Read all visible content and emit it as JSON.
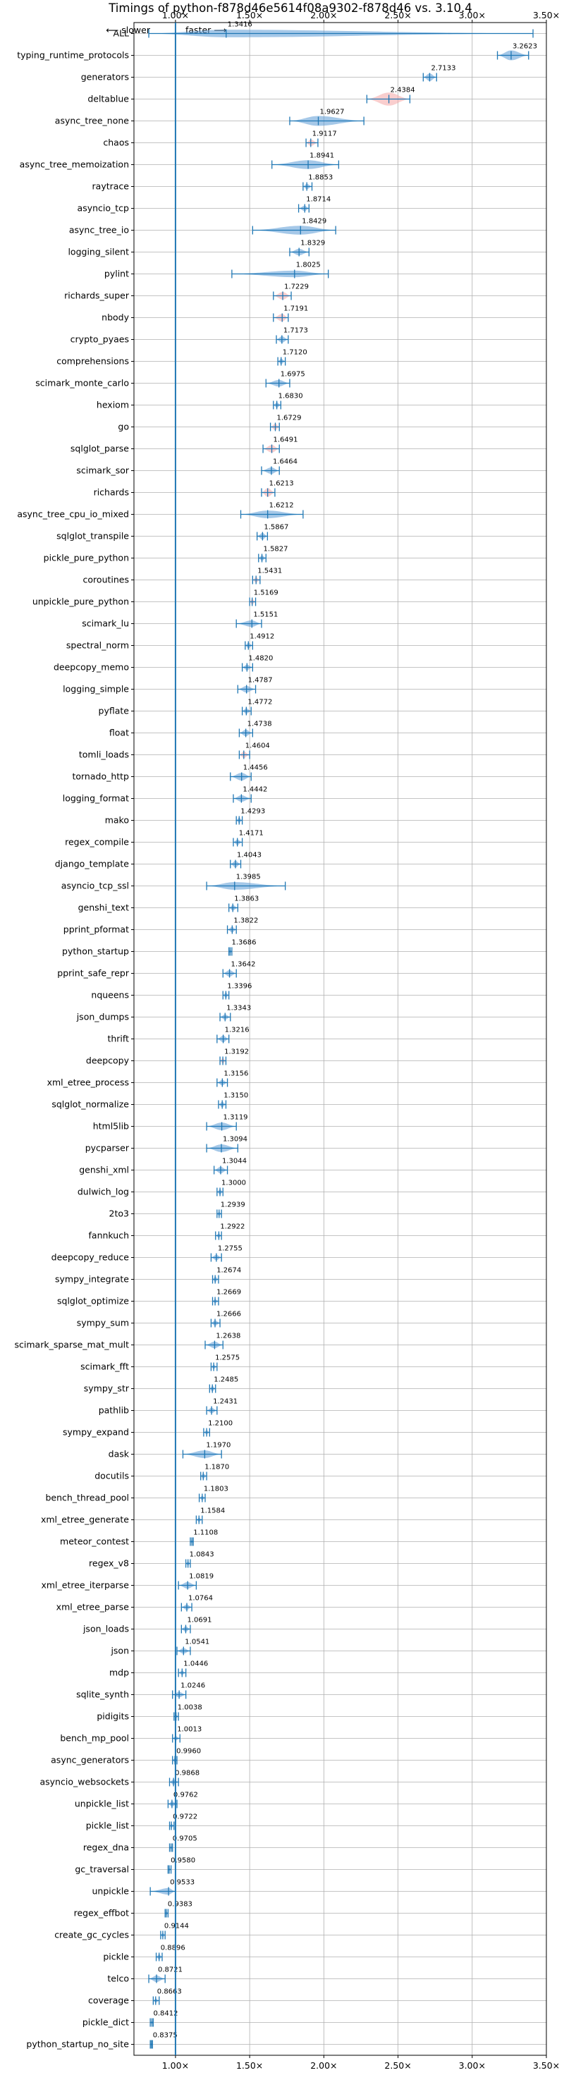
{
  "chart_data": {
    "type": "violin",
    "title": "Timings of python-f878d46e5614f08a9302-f878d46 vs. 3.10.4",
    "direction_left": "⟵ slower",
    "direction_right": "faster ⟶",
    "xlim": [
      0.72,
      3.5
    ],
    "x_ticks": [
      1.0,
      1.5,
      2.0,
      2.5,
      3.0,
      3.5
    ],
    "x_tick_labels": [
      "1.00×",
      "1.50×",
      "2.00×",
      "2.50×",
      "3.00×",
      "3.50×"
    ],
    "reference_line": 1.0,
    "grid": true,
    "colors": {
      "normal": "#5b9bd5",
      "highlight": "#f4a6a6",
      "line": "#1f77b4"
    },
    "benchmarks": [
      {
        "name": "ALL",
        "value": 1.3416,
        "min": 0.82,
        "max": 3.41,
        "width": 0.35,
        "label": "1.3416",
        "highlight": false
      },
      {
        "name": "typing_runtime_protocols",
        "value": 3.2623,
        "min": 3.17,
        "max": 3.38,
        "width": 0.45,
        "label": "3.2623",
        "highlight": false
      },
      {
        "name": "generators",
        "value": 2.7133,
        "min": 2.67,
        "max": 2.76,
        "width": 0.35,
        "label": "2.7133",
        "highlight": false
      },
      {
        "name": "deltablue",
        "value": 2.4384,
        "min": 2.29,
        "max": 2.58,
        "width": 0.6,
        "label": "2.4384",
        "highlight": true
      },
      {
        "name": "async_tree_none",
        "value": 1.9627,
        "min": 1.77,
        "max": 2.27,
        "width": 0.45,
        "label": "1.9627",
        "highlight": false
      },
      {
        "name": "chaos",
        "value": 1.9117,
        "min": 1.88,
        "max": 1.96,
        "width": 0.3,
        "label": "1.9117",
        "highlight": true
      },
      {
        "name": "async_tree_memoization",
        "value": 1.8941,
        "min": 1.65,
        "max": 2.1,
        "width": 0.4,
        "label": "1.8941",
        "highlight": false
      },
      {
        "name": "raytrace",
        "value": 1.8853,
        "min": 1.86,
        "max": 1.92,
        "width": 0.25,
        "label": "1.8853",
        "highlight": false
      },
      {
        "name": "asyncio_tcp",
        "value": 1.8714,
        "min": 1.83,
        "max": 1.9,
        "width": 0.25,
        "label": "1.8714",
        "highlight": false
      },
      {
        "name": "async_tree_io",
        "value": 1.8429,
        "min": 1.52,
        "max": 2.08,
        "width": 0.4,
        "label": "1.8429",
        "highlight": false
      },
      {
        "name": "logging_silent",
        "value": 1.8329,
        "min": 1.77,
        "max": 1.9,
        "width": 0.3,
        "label": "1.8329",
        "highlight": false
      },
      {
        "name": "pylint",
        "value": 1.8025,
        "min": 1.38,
        "max": 2.03,
        "width": 0.3,
        "label": "1.8025",
        "highlight": false
      },
      {
        "name": "richards_super",
        "value": 1.7229,
        "min": 1.66,
        "max": 1.78,
        "width": 0.35,
        "label": "1.7229",
        "highlight": true
      },
      {
        "name": "nbody",
        "value": 1.7191,
        "min": 1.66,
        "max": 1.76,
        "width": 0.35,
        "label": "1.7191",
        "highlight": true
      },
      {
        "name": "crypto_pyaes",
        "value": 1.7173,
        "min": 1.68,
        "max": 1.76,
        "width": 0.3,
        "label": "1.7173",
        "highlight": false
      },
      {
        "name": "comprehensions",
        "value": 1.712,
        "min": 1.69,
        "max": 1.74,
        "width": 0.25,
        "label": "1.7120",
        "highlight": false
      },
      {
        "name": "scimark_monte_carlo",
        "value": 1.6975,
        "min": 1.61,
        "max": 1.77,
        "width": 0.3,
        "label": "1.6975",
        "highlight": false
      },
      {
        "name": "hexiom",
        "value": 1.683,
        "min": 1.66,
        "max": 1.71,
        "width": 0.25,
        "label": "1.6830",
        "highlight": false
      },
      {
        "name": "go",
        "value": 1.6729,
        "min": 1.64,
        "max": 1.7,
        "width": 0.3,
        "label": "1.6729",
        "highlight": true
      },
      {
        "name": "sqlglot_parse",
        "value": 1.6491,
        "min": 1.59,
        "max": 1.7,
        "width": 0.35,
        "label": "1.6491",
        "highlight": true
      },
      {
        "name": "scimark_sor",
        "value": 1.6464,
        "min": 1.58,
        "max": 1.7,
        "width": 0.3,
        "label": "1.6464",
        "highlight": false
      },
      {
        "name": "richards",
        "value": 1.6213,
        "min": 1.58,
        "max": 1.67,
        "width": 0.4,
        "label": "1.6213",
        "highlight": true
      },
      {
        "name": "async_tree_cpu_io_mixed",
        "value": 1.6212,
        "min": 1.44,
        "max": 1.86,
        "width": 0.35,
        "label": "1.6212",
        "highlight": false
      },
      {
        "name": "sqlglot_transpile",
        "value": 1.5867,
        "min": 1.55,
        "max": 1.62,
        "width": 0.3,
        "label": "1.5867",
        "highlight": false
      },
      {
        "name": "pickle_pure_python",
        "value": 1.5827,
        "min": 1.56,
        "max": 1.61,
        "width": 0.25,
        "label": "1.5827",
        "highlight": false
      },
      {
        "name": "coroutines",
        "value": 1.5431,
        "min": 1.52,
        "max": 1.57,
        "width": 0.25,
        "label": "1.5431",
        "highlight": true
      },
      {
        "name": "unpickle_pure_python",
        "value": 1.5169,
        "min": 1.5,
        "max": 1.54,
        "width": 0.25,
        "label": "1.5169",
        "highlight": true
      },
      {
        "name": "scimark_lu",
        "value": 1.5151,
        "min": 1.41,
        "max": 1.58,
        "width": 0.3,
        "label": "1.5151",
        "highlight": false
      },
      {
        "name": "spectral_norm",
        "value": 1.4912,
        "min": 1.47,
        "max": 1.52,
        "width": 0.25,
        "label": "1.4912",
        "highlight": false
      },
      {
        "name": "deepcopy_memo",
        "value": 1.482,
        "min": 1.45,
        "max": 1.52,
        "width": 0.25,
        "label": "1.4820",
        "highlight": false
      },
      {
        "name": "logging_simple",
        "value": 1.4787,
        "min": 1.42,
        "max": 1.54,
        "width": 0.3,
        "label": "1.4787",
        "highlight": false
      },
      {
        "name": "pyflate",
        "value": 1.4772,
        "min": 1.45,
        "max": 1.51,
        "width": 0.25,
        "label": "1.4772",
        "highlight": false
      },
      {
        "name": "float",
        "value": 1.4738,
        "min": 1.43,
        "max": 1.52,
        "width": 0.3,
        "label": "1.4738",
        "highlight": false
      },
      {
        "name": "tomli_loads",
        "value": 1.4604,
        "min": 1.43,
        "max": 1.5,
        "width": 0.3,
        "label": "1.4604",
        "highlight": true
      },
      {
        "name": "tornado_http",
        "value": 1.4456,
        "min": 1.37,
        "max": 1.51,
        "width": 0.35,
        "label": "1.4456",
        "highlight": false
      },
      {
        "name": "logging_format",
        "value": 1.4442,
        "min": 1.39,
        "max": 1.51,
        "width": 0.3,
        "label": "1.4442",
        "highlight": false
      },
      {
        "name": "mako",
        "value": 1.4293,
        "min": 1.41,
        "max": 1.45,
        "width": 0.25,
        "label": "1.4293",
        "highlight": false
      },
      {
        "name": "regex_compile",
        "value": 1.4171,
        "min": 1.39,
        "max": 1.45,
        "width": 0.25,
        "label": "1.4171",
        "highlight": false
      },
      {
        "name": "django_template",
        "value": 1.4043,
        "min": 1.37,
        "max": 1.44,
        "width": 0.3,
        "label": "1.4043",
        "highlight": false
      },
      {
        "name": "asyncio_tcp_ssl",
        "value": 1.3985,
        "min": 1.21,
        "max": 1.74,
        "width": 0.35,
        "label": "1.3985",
        "highlight": false
      },
      {
        "name": "genshi_text",
        "value": 1.3863,
        "min": 1.36,
        "max": 1.42,
        "width": 0.25,
        "label": "1.3863",
        "highlight": false
      },
      {
        "name": "pprint_pformat",
        "value": 1.3822,
        "min": 1.35,
        "max": 1.41,
        "width": 0.25,
        "label": "1.3822",
        "highlight": false
      },
      {
        "name": "python_startup",
        "value": 1.3686,
        "min": 1.36,
        "max": 1.38,
        "width": 0.2,
        "label": "1.3686",
        "highlight": false
      },
      {
        "name": "pprint_safe_repr",
        "value": 1.3642,
        "min": 1.32,
        "max": 1.41,
        "width": 0.3,
        "label": "1.3642",
        "highlight": false
      },
      {
        "name": "nqueens",
        "value": 1.3396,
        "min": 1.32,
        "max": 1.36,
        "width": 0.25,
        "label": "1.3396",
        "highlight": false
      },
      {
        "name": "json_dumps",
        "value": 1.3343,
        "min": 1.3,
        "max": 1.37,
        "width": 0.25,
        "label": "1.3343",
        "highlight": false
      },
      {
        "name": "thrift",
        "value": 1.3216,
        "min": 1.28,
        "max": 1.36,
        "width": 0.3,
        "label": "1.3216",
        "highlight": false
      },
      {
        "name": "deepcopy",
        "value": 1.3192,
        "min": 1.3,
        "max": 1.34,
        "width": 0.25,
        "label": "1.3192",
        "highlight": true
      },
      {
        "name": "xml_etree_process",
        "value": 1.3156,
        "min": 1.28,
        "max": 1.35,
        "width": 0.25,
        "label": "1.3156",
        "highlight": false
      },
      {
        "name": "sqlglot_normalize",
        "value": 1.315,
        "min": 1.29,
        "max": 1.34,
        "width": 0.25,
        "label": "1.3150",
        "highlight": false
      },
      {
        "name": "html5lib",
        "value": 1.3119,
        "min": 1.21,
        "max": 1.41,
        "width": 0.35,
        "label": "1.3119",
        "highlight": false
      },
      {
        "name": "pycparser",
        "value": 1.3094,
        "min": 1.21,
        "max": 1.42,
        "width": 0.35,
        "label": "1.3094",
        "highlight": false
      },
      {
        "name": "genshi_xml",
        "value": 1.3044,
        "min": 1.26,
        "max": 1.35,
        "width": 0.3,
        "label": "1.3044",
        "highlight": false
      },
      {
        "name": "dulwich_log",
        "value": 1.3,
        "min": 1.28,
        "max": 1.32,
        "width": 0.25,
        "label": "1.3000",
        "highlight": false
      },
      {
        "name": "2to3",
        "value": 1.2939,
        "min": 1.28,
        "max": 1.31,
        "width": 0.2,
        "label": "1.2939",
        "highlight": false
      },
      {
        "name": "fannkuch",
        "value": 1.2922,
        "min": 1.27,
        "max": 1.31,
        "width": 0.2,
        "label": "1.2922",
        "highlight": false
      },
      {
        "name": "deepcopy_reduce",
        "value": 1.2755,
        "min": 1.24,
        "max": 1.31,
        "width": 0.25,
        "label": "1.2755",
        "highlight": false
      },
      {
        "name": "sympy_integrate",
        "value": 1.2674,
        "min": 1.25,
        "max": 1.29,
        "width": 0.25,
        "label": "1.2674",
        "highlight": false
      },
      {
        "name": "sqlglot_optimize",
        "value": 1.2669,
        "min": 1.25,
        "max": 1.29,
        "width": 0.2,
        "label": "1.2669",
        "highlight": false
      },
      {
        "name": "sympy_sum",
        "value": 1.2666,
        "min": 1.24,
        "max": 1.3,
        "width": 0.25,
        "label": "1.2666",
        "highlight": false
      },
      {
        "name": "scimark_sparse_mat_mult",
        "value": 1.2638,
        "min": 1.2,
        "max": 1.32,
        "width": 0.3,
        "label": "1.2638",
        "highlight": false
      },
      {
        "name": "scimark_fft",
        "value": 1.2575,
        "min": 1.24,
        "max": 1.28,
        "width": 0.2,
        "label": "1.2575",
        "highlight": false
      },
      {
        "name": "sympy_str",
        "value": 1.2485,
        "min": 1.23,
        "max": 1.27,
        "width": 0.25,
        "label": "1.2485",
        "highlight": false
      },
      {
        "name": "pathlib",
        "value": 1.2431,
        "min": 1.21,
        "max": 1.28,
        "width": 0.25,
        "label": "1.2431",
        "highlight": false
      },
      {
        "name": "sympy_expand",
        "value": 1.21,
        "min": 1.19,
        "max": 1.23,
        "width": 0.2,
        "label": "1.2100",
        "highlight": false
      },
      {
        "name": "dask",
        "value": 1.197,
        "min": 1.05,
        "max": 1.31,
        "width": 0.35,
        "label": "1.1970",
        "highlight": false
      },
      {
        "name": "docutils",
        "value": 1.187,
        "min": 1.17,
        "max": 1.21,
        "width": 0.25,
        "label": "1.1870",
        "highlight": false
      },
      {
        "name": "bench_thread_pool",
        "value": 1.1803,
        "min": 1.16,
        "max": 1.2,
        "width": 0.2,
        "label": "1.1803",
        "highlight": false
      },
      {
        "name": "xml_etree_generate",
        "value": 1.1584,
        "min": 1.14,
        "max": 1.18,
        "width": 0.2,
        "label": "1.1584",
        "highlight": false
      },
      {
        "name": "meteor_contest",
        "value": 1.1108,
        "min": 1.1,
        "max": 1.12,
        "width": 0.2,
        "label": "1.1108",
        "highlight": false
      },
      {
        "name": "regex_v8",
        "value": 1.0843,
        "min": 1.07,
        "max": 1.1,
        "width": 0.2,
        "label": "1.0843",
        "highlight": false
      },
      {
        "name": "xml_etree_iterparse",
        "value": 1.0819,
        "min": 1.02,
        "max": 1.14,
        "width": 0.3,
        "label": "1.0819",
        "highlight": false
      },
      {
        "name": "xml_etree_parse",
        "value": 1.0764,
        "min": 1.04,
        "max": 1.11,
        "width": 0.25,
        "label": "1.0764",
        "highlight": false
      },
      {
        "name": "json_loads",
        "value": 1.0691,
        "min": 1.04,
        "max": 1.1,
        "width": 0.25,
        "label": "1.0691",
        "highlight": false
      },
      {
        "name": "json",
        "value": 1.0541,
        "min": 1.01,
        "max": 1.1,
        "width": 0.25,
        "label": "1.0541",
        "highlight": false
      },
      {
        "name": "mdp",
        "value": 1.0446,
        "min": 1.02,
        "max": 1.07,
        "width": 0.2,
        "label": "1.0446",
        "highlight": false
      },
      {
        "name": "sqlite_synth",
        "value": 1.0246,
        "min": 0.98,
        "max": 1.07,
        "width": 0.25,
        "label": "1.0246",
        "highlight": false
      },
      {
        "name": "pidigits",
        "value": 1.0038,
        "min": 0.99,
        "max": 1.02,
        "width": 0.15,
        "label": "1.0038",
        "highlight": false
      },
      {
        "name": "bench_mp_pool",
        "value": 1.0013,
        "min": 0.98,
        "max": 1.03,
        "width": 0.2,
        "label": "1.0013",
        "highlight": false
      },
      {
        "name": "async_generators",
        "value": 0.996,
        "min": 0.98,
        "max": 1.01,
        "width": 0.2,
        "label": "0.9960",
        "highlight": false
      },
      {
        "name": "asyncio_websockets",
        "value": 0.9868,
        "min": 0.96,
        "max": 1.02,
        "width": 0.25,
        "label": "0.9868",
        "highlight": false
      },
      {
        "name": "unpickle_list",
        "value": 0.9762,
        "min": 0.95,
        "max": 1.01,
        "width": 0.25,
        "label": "0.9762",
        "highlight": false
      },
      {
        "name": "pickle_list",
        "value": 0.9722,
        "min": 0.96,
        "max": 0.99,
        "width": 0.2,
        "label": "0.9722",
        "highlight": false
      },
      {
        "name": "regex_dna",
        "value": 0.9705,
        "min": 0.96,
        "max": 0.98,
        "width": 0.2,
        "label": "0.9705",
        "highlight": false
      },
      {
        "name": "gc_traversal",
        "value": 0.958,
        "min": 0.95,
        "max": 0.97,
        "width": 0.15,
        "label": "0.9580",
        "highlight": false
      },
      {
        "name": "unpickle",
        "value": 0.9533,
        "min": 0.83,
        "max": 1.0,
        "width": 0.3,
        "label": "0.9533",
        "highlight": false
      },
      {
        "name": "regex_effbot",
        "value": 0.9383,
        "min": 0.93,
        "max": 0.95,
        "width": 0.2,
        "label": "0.9383",
        "highlight": false
      },
      {
        "name": "create_gc_cycles",
        "value": 0.9144,
        "min": 0.9,
        "max": 0.93,
        "width": 0.2,
        "label": "0.9144",
        "highlight": false
      },
      {
        "name": "pickle",
        "value": 0.8896,
        "min": 0.87,
        "max": 0.91,
        "width": 0.25,
        "label": "0.8896",
        "highlight": false
      },
      {
        "name": "telco",
        "value": 0.8721,
        "min": 0.82,
        "max": 0.93,
        "width": 0.3,
        "label": "0.8721",
        "highlight": false
      },
      {
        "name": "coverage",
        "value": 0.8663,
        "min": 0.85,
        "max": 0.89,
        "width": 0.2,
        "label": "0.8663",
        "highlight": false
      },
      {
        "name": "pickle_dict",
        "value": 0.8412,
        "min": 0.83,
        "max": 0.85,
        "width": 0.2,
        "label": "0.8412",
        "highlight": false
      },
      {
        "name": "python_startup_no_site",
        "value": 0.8375,
        "min": 0.83,
        "max": 0.845,
        "width": 0.15,
        "label": "0.8375",
        "highlight": false
      }
    ]
  }
}
